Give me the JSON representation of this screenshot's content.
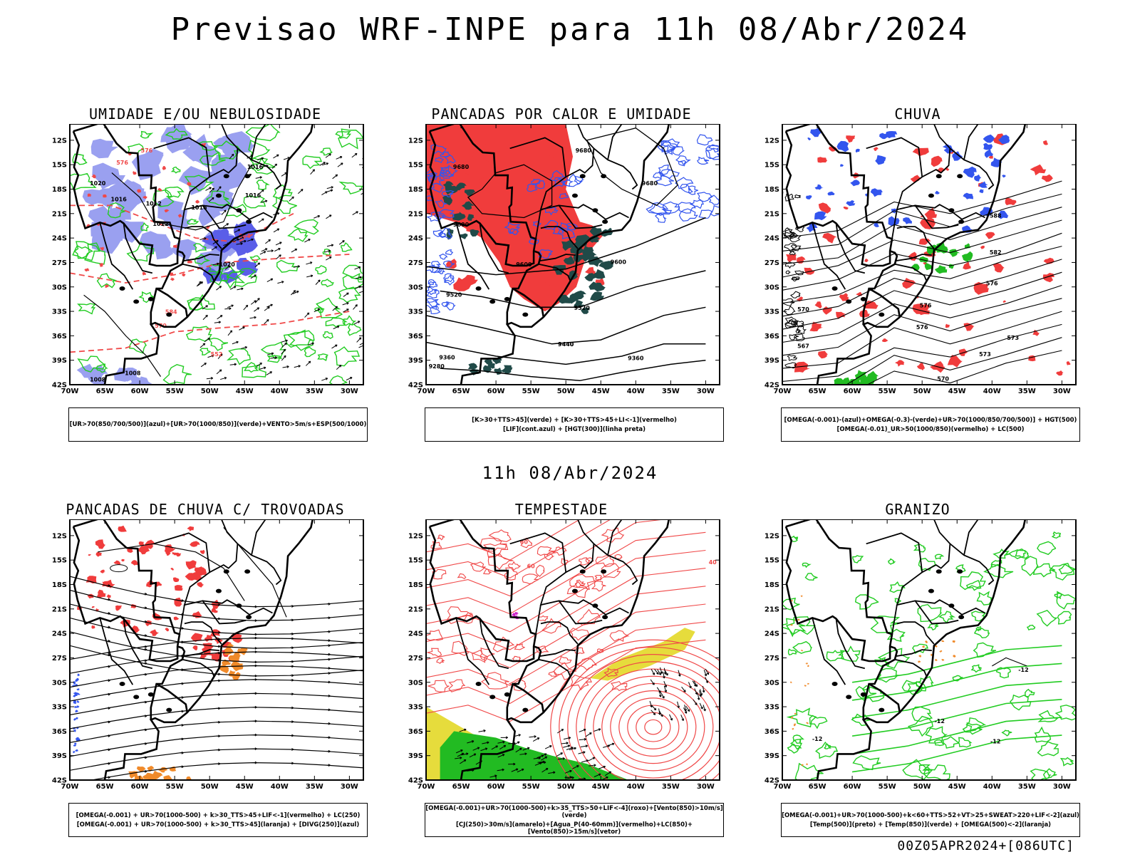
{
  "main_title": "Previsao WRF-INPE  para 11h 08/Abr/2024",
  "mid_date": "11h 08/Abr/2024",
  "footer": "00Z05APR2024+[086UTC]",
  "axes": {
    "lat_labels": [
      "12S",
      "15S",
      "18S",
      "21S",
      "24S",
      "27S",
      "30S",
      "33S",
      "36S",
      "39S",
      "42S"
    ],
    "lon_labels": [
      "70W",
      "65W",
      "60W",
      "55W",
      "50W",
      "45W",
      "40W",
      "35W",
      "30W"
    ]
  },
  "colors": {
    "blue_fill": "#9aa0f0",
    "dark_blue_fill": "#5a5ee8",
    "green_line": "#22cc22",
    "red_fill": "#f03c3c",
    "dark_teal_fill": "#204a48",
    "blue_line": "#3355ee",
    "orange_fill": "#f08a2a",
    "yellow_fill": "#e6dc3c",
    "green_fill": "#22bb22",
    "magenta": "#cc22cc",
    "red_line": "#f04848"
  },
  "panels": [
    {
      "title": "UMIDADE E/OU NEBULOSIDADE",
      "legend": [
        "[UR>70(850/700/500)](azul)+[UR>70(1000/850)](verde)+VENTO>5m/s+ESP(500/1000)"
      ],
      "labels": [
        "1020",
        "1016",
        "1012",
        "1012",
        "1016",
        "1016",
        "1016",
        "1020",
        "1008",
        "1008",
        "576",
        "576",
        "570",
        "584",
        "552",
        "564"
      ]
    },
    {
      "title": "PANCADAS POR CALOR E UMIDADE",
      "legend": [
        "[K>30+TTS>45](verde) + [K>30+TTS>45+LI<-1](vermelho)",
        "[LIF](cont.azul) + [HGT(300)](linha preta)"
      ],
      "labels": [
        "9680",
        "9680",
        "9680",
        "9600",
        "9600",
        "9600",
        "9520",
        "9520",
        "9440",
        "9440",
        "9360",
        "9360",
        "9280"
      ]
    },
    {
      "title": "CHUVA",
      "legend": [
        "[OMEGA(-0.001)-(azul)+OMEGA(-0.3)-(verde)+UR>70(1000/850/700/500)] + HGT(500)",
        "[OMEGA(-0.01)_UR>50(1000/850)(vermelho) + LC(500)"
      ],
      "labels": [
        "588",
        "582",
        "576",
        "576",
        "570",
        "573",
        "567",
        "576",
        "573",
        "570"
      ]
    },
    {
      "title": "PANCADAS DE CHUVA C/ TROVOADAS",
      "legend": [
        "[OMEGA(-0.001) + UR>70(1000-500) + k>30_TTS>45+LIF<-1](vermelho) + LC(250)",
        "[OMEGA(-0.001) + UR>70(1000-500) + k>30_TTS>45](laranja) + [DIVG(250)](azul)"
      ],
      "labels": []
    },
    {
      "title": "TEMPESTADE",
      "legend": [
        "[OMEGA(-0.001)+UR>70(1000-500)+k>35_TTS>50+LIF<-4](roxo)+[Vento(850)>10m/s](verde)",
        "[CJ(250)>30m/s](amarelo)+[Agua_P(40-60mm)](vermelho)+LC(850)+[Vento(850)>15m/s](vetor)"
      ],
      "labels": [
        "60",
        "60",
        "40"
      ]
    },
    {
      "title": "GRANIZO",
      "legend": [
        "[OMEGA(-0.001)+UR>70(1000-500)+k<60+TTS>52+VT>25+SWEAT>220+LIF<-2](azul)",
        "[Temp(500)](preto) + [Temp(850)](verde) + [OMEGA(500)<-2](laranja)"
      ],
      "labels": [
        "-12",
        "-12",
        "-12",
        "-12"
      ]
    }
  ]
}
